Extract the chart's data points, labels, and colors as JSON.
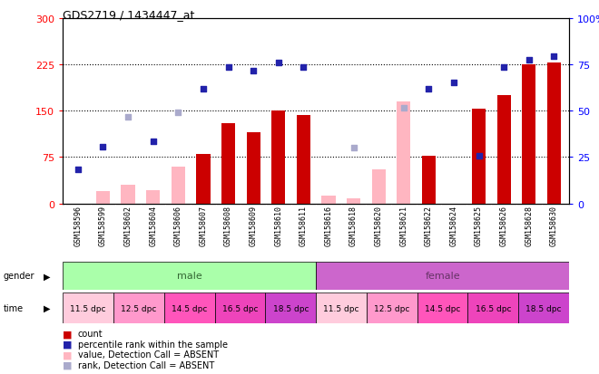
{
  "title": "GDS2719 / 1434447_at",
  "samples": [
    "GSM158596",
    "GSM158599",
    "GSM158602",
    "GSM158604",
    "GSM158606",
    "GSM158607",
    "GSM158608",
    "GSM158609",
    "GSM158610",
    "GSM158611",
    "GSM158616",
    "GSM158618",
    "GSM158620",
    "GSM158621",
    "GSM158622",
    "GSM158624",
    "GSM158625",
    "GSM158626",
    "GSM158628",
    "GSM158630"
  ],
  "count_values": [
    null,
    null,
    null,
    null,
    null,
    80,
    130,
    115,
    150,
    143,
    null,
    null,
    null,
    null,
    77,
    null,
    153,
    175,
    225,
    228
  ],
  "count_absent": [
    null,
    20,
    30,
    22,
    60,
    null,
    null,
    null,
    null,
    null,
    12,
    8,
    55,
    165,
    null,
    null,
    null,
    null,
    null,
    null
  ],
  "rank_values": [
    55,
    92,
    null,
    100,
    null,
    185,
    220,
    215,
    228,
    220,
    null,
    null,
    null,
    null,
    185,
    195,
    77,
    220,
    232,
    238
  ],
  "rank_absent": [
    null,
    null,
    140,
    null,
    148,
    null,
    null,
    null,
    null,
    null,
    null,
    90,
    null,
    155,
    null,
    null,
    null,
    null,
    null,
    null
  ],
  "ylim_left": [
    0,
    300
  ],
  "ylim_right": [
    0,
    100
  ],
  "yticks_left": [
    0,
    75,
    150,
    225,
    300
  ],
  "yticks_right": [
    0,
    25,
    50,
    75,
    100
  ],
  "bar_color": "#CC0000",
  "bar_absent_color": "#FFB6C1",
  "rank_color": "#2222AA",
  "rank_absent_color": "#AAAACC",
  "male_color": "#AAFFAA",
  "female_color": "#CC66CC",
  "male_text_color": "#336633",
  "female_text_color": "#663366",
  "time_labels": [
    "11.5 dpc",
    "12.5 dpc",
    "14.5 dpc",
    "16.5 dpc",
    "18.5 dpc",
    "11.5 dpc",
    "12.5 dpc",
    "14.5 dpc",
    "16.5 dpc",
    "18.5 dpc"
  ],
  "time_colors": [
    "#FFCCDD",
    "#FF99CC",
    "#FF55BB",
    "#EE44BB",
    "#CC44CC",
    "#FFCCDD",
    "#FF99CC",
    "#FF55BB",
    "#EE44BB",
    "#CC44CC"
  ],
  "tick_bg": "#CCCCCC",
  "chart_bg": "#FFFFFF"
}
